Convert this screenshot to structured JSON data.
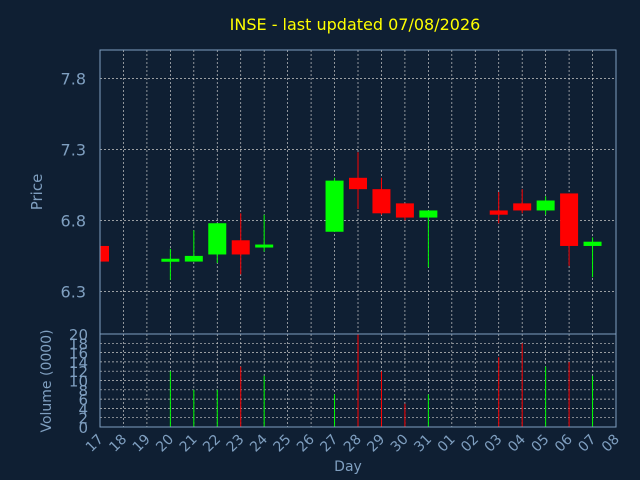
{
  "colors": {
    "background": "#0f1f33",
    "plot_border": "#7f9fc0",
    "grid": "#c8c8c8",
    "text": "#7f9fc0",
    "title": "#ffff00",
    "up": "#00ff00",
    "down": "#ff0000"
  },
  "chart_data": {
    "type": "candlestick",
    "title": "INSE - last updated 07/08/2026",
    "xlabel": "Day",
    "price_axis": {
      "label": "Price",
      "ticks": [
        "6.3",
        "6.8",
        "7.3",
        "7.8"
      ],
      "ylim": [
        6.0,
        8.0
      ]
    },
    "volume_axis": {
      "label": "Volume (0000)",
      "ticks": [
        "0",
        "2",
        "4",
        "6",
        "8",
        "10",
        "12",
        "14",
        "16",
        "18",
        "20"
      ],
      "ylim": [
        0,
        20
      ]
    },
    "days": [
      "17",
      "18",
      "19",
      "20",
      "21",
      "22",
      "23",
      "24",
      "25",
      "26",
      "27",
      "28",
      "29",
      "30",
      "31",
      "01",
      "02",
      "03",
      "04",
      "05",
      "06",
      "07",
      "08"
    ],
    "candles": [
      {
        "day": "17",
        "open": 6.62,
        "high": 6.62,
        "low": 6.51,
        "close": 6.51,
        "volume": 0
      },
      {
        "day": "20",
        "open": 6.52,
        "high": 6.6,
        "low": 6.38,
        "close": 6.53,
        "volume": 12
      },
      {
        "day": "21",
        "open": 6.51,
        "high": 6.73,
        "low": 6.51,
        "close": 6.55,
        "volume": 8
      },
      {
        "day": "22",
        "open": 6.56,
        "high": 6.78,
        "low": 6.5,
        "close": 6.78,
        "volume": 8
      },
      {
        "day": "23",
        "open": 6.66,
        "high": 6.85,
        "low": 6.42,
        "close": 6.56,
        "volume": 13
      },
      {
        "day": "24",
        "open": 6.62,
        "high": 6.84,
        "low": 6.58,
        "close": 6.63,
        "volume": 11
      },
      {
        "day": "27",
        "open": 6.72,
        "high": 7.1,
        "low": 6.72,
        "close": 7.08,
        "volume": 7
      },
      {
        "day": "28",
        "open": 7.1,
        "high": 7.28,
        "low": 6.88,
        "close": 7.02,
        "volume": 20
      },
      {
        "day": "29",
        "open": 7.02,
        "high": 7.1,
        "low": 6.84,
        "close": 6.85,
        "volume": 12
      },
      {
        "day": "30",
        "open": 6.92,
        "high": 6.92,
        "low": 6.8,
        "close": 6.82,
        "volume": 5
      },
      {
        "day": "31",
        "open": 6.82,
        "high": 6.87,
        "low": 6.47,
        "close": 6.87,
        "volume": 7
      },
      {
        "day": "03",
        "open": 6.87,
        "high": 7.0,
        "low": 6.78,
        "close": 6.84,
        "volume": 15
      },
      {
        "day": "04",
        "open": 6.92,
        "high": 7.02,
        "low": 6.85,
        "close": 6.87,
        "volume": 18
      },
      {
        "day": "05",
        "open": 6.87,
        "high": 6.97,
        "low": 6.84,
        "close": 6.94,
        "volume": 13
      },
      {
        "day": "06",
        "open": 6.99,
        "high": 6.99,
        "low": 6.48,
        "close": 6.62,
        "volume": 14
      },
      {
        "day": "07",
        "open": 6.62,
        "high": 6.68,
        "low": 6.4,
        "close": 6.65,
        "volume": 11
      }
    ]
  }
}
